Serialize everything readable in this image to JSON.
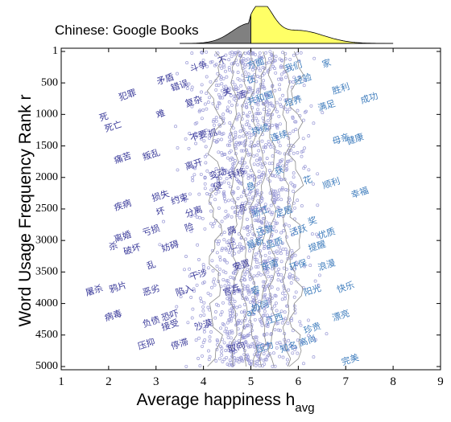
{
  "chart_data": {
    "type": "scatter",
    "title": "Chinese: Google Books",
    "xlabel": "Average happiness h",
    "xlabel_sub": "avg",
    "ylabel": "Word Usage Frequency Rank r",
    "xlim": [
      1,
      9
    ],
    "ylim": [
      5000,
      1
    ],
    "x_ticks": [
      "1",
      "2",
      "3",
      "4",
      "5",
      "6",
      "7",
      "8",
      "9"
    ],
    "y_ticks": [
      "1",
      "500",
      "1000",
      "1500",
      "2000",
      "2500",
      "3000",
      "3500",
      "4000",
      "4500",
      "5000"
    ],
    "grid": false,
    "colors": {
      "points": "#9a9ad6",
      "words_negative": "#3a3a9a",
      "words_positive": "#3f7dbd",
      "histogram_below_mean": "#808080",
      "histogram_above_mean": "#ffff66",
      "contours": "#8a8a8a"
    },
    "mean_h": 5.0,
    "words": [
      {
        "text": "犯罪",
        "h": 2.4,
        "rank": 700
      },
      {
        "text": "死",
        "h": 1.9,
        "rank": 1050
      },
      {
        "text": "死亡",
        "h": 2.1,
        "rank": 1200
      },
      {
        "text": "错误",
        "h": 3.5,
        "rank": 550
      },
      {
        "text": "斗争",
        "h": 3.9,
        "rank": 250
      },
      {
        "text": "不",
        "h": 4.4,
        "rank": 150
      },
      {
        "text": "方面",
        "h": 5.1,
        "rank": 200
      },
      {
        "text": "我们",
        "h": 5.9,
        "rank": 250
      },
      {
        "text": "家",
        "h": 6.6,
        "rank": 200
      },
      {
        "text": "矛盾",
        "h": 3.2,
        "rank": 450
      },
      {
        "text": "复杂",
        "h": 3.8,
        "rank": 800
      },
      {
        "text": "关",
        "h": 4.5,
        "rank": 650
      },
      {
        "text": "活",
        "h": 4.8,
        "rank": 700
      },
      {
        "text": "在",
        "h": 5.0,
        "rank": 450
      },
      {
        "text": "共和国",
        "h": 5.2,
        "rank": 750
      },
      {
        "text": "经验",
        "h": 6.1,
        "rank": 450
      },
      {
        "text": "培养",
        "h": 5.9,
        "rank": 800
      },
      {
        "text": "胜利",
        "h": 6.9,
        "rank": 600
      },
      {
        "text": "满足",
        "h": 6.6,
        "rank": 870
      },
      {
        "text": "成功",
        "h": 7.5,
        "rank": 750
      },
      {
        "text": "难",
        "h": 3.1,
        "rank": 1000
      },
      {
        "text": "不要",
        "h": 3.9,
        "rank": 1350
      },
      {
        "text": "抓",
        "h": 4.2,
        "rank": 1300
      },
      {
        "text": "持续",
        "h": 5.2,
        "rank": 1250
      },
      {
        "text": "连续",
        "h": 5.6,
        "rank": 1350
      },
      {
        "text": "母亲",
        "h": 6.9,
        "rank": 1400
      },
      {
        "text": "健康",
        "h": 7.2,
        "rank": 1400
      },
      {
        "text": "痛苦",
        "h": 2.3,
        "rank": 1700
      },
      {
        "text": "叛乱",
        "h": 2.9,
        "rank": 1650
      },
      {
        "text": "离开",
        "h": 3.8,
        "rank": 1800
      },
      {
        "text": "变动",
        "h": 4.3,
        "rank": 1950
      },
      {
        "text": "转移",
        "h": 4.7,
        "rank": 1950
      },
      {
        "text": "获",
        "h": 5.6,
        "rank": 1900
      },
      {
        "text": "花",
        "h": 6.2,
        "rank": 2050
      },
      {
        "text": "顺利",
        "h": 6.7,
        "rank": 2100
      },
      {
        "text": "幸福",
        "h": 7.3,
        "rank": 2250
      },
      {
        "text": "疾病",
        "h": 2.3,
        "rank": 2450
      },
      {
        "text": "损失",
        "h": 3.1,
        "rank": 2300
      },
      {
        "text": "坏",
        "h": 3.1,
        "rank": 2550
      },
      {
        "text": "约束",
        "h": 3.5,
        "rank": 2350
      },
      {
        "text": "分离",
        "h": 3.8,
        "rank": 2550
      },
      {
        "text": "侵",
        "h": 4.3,
        "rank": 2150
      },
      {
        "text": "息",
        "h": 5.0,
        "rank": 2150
      },
      {
        "text": "流",
        "h": 4.8,
        "rank": 2500
      },
      {
        "text": "浙江",
        "h": 5.2,
        "rank": 2550
      },
      {
        "text": "定居",
        "h": 5.7,
        "rank": 2550
      },
      {
        "text": "奖",
        "h": 6.3,
        "rank": 2700
      },
      {
        "text": "优质",
        "h": 6.6,
        "rank": 2900
      },
      {
        "text": "离婚",
        "h": 2.3,
        "rank": 2950
      },
      {
        "text": "亏损",
        "h": 2.9,
        "rank": 2850
      },
      {
        "text": "险",
        "h": 3.7,
        "rank": 2800
      },
      {
        "text": "还款",
        "h": 5.3,
        "rank": 2850
      },
      {
        "text": "活跃",
        "h": 6.0,
        "rank": 2850
      },
      {
        "text": "杀",
        "h": 2.1,
        "rank": 3100
      },
      {
        "text": "破坏",
        "h": 2.5,
        "rank": 3150
      },
      {
        "text": "妨碍",
        "h": 3.3,
        "rank": 3100
      },
      {
        "text": "腐",
        "h": 4.6,
        "rank": 2850
      },
      {
        "text": "汇",
        "h": 4.6,
        "rank": 3100
      },
      {
        "text": "最新",
        "h": 5.1,
        "rank": 3050
      },
      {
        "text": "品质",
        "h": 5.5,
        "rank": 3050
      },
      {
        "text": "提醒",
        "h": 6.4,
        "rank": 3100
      },
      {
        "text": "乱",
        "h": 2.9,
        "rank": 3400
      },
      {
        "text": "干涉",
        "h": 3.9,
        "rank": 3550
      },
      {
        "text": "安置",
        "h": 4.8,
        "rank": 3400
      },
      {
        "text": "东南",
        "h": 5.4,
        "rank": 3400
      },
      {
        "text": "环保",
        "h": 6.0,
        "rank": 3400
      },
      {
        "text": "浪漫",
        "h": 6.6,
        "rank": 3400
      },
      {
        "text": "屠杀",
        "h": 1.7,
        "rank": 3800
      },
      {
        "text": "鸦片",
        "h": 2.2,
        "rank": 3750
      },
      {
        "text": "恶劣",
        "h": 2.9,
        "rank": 3800
      },
      {
        "text": "陷入",
        "h": 3.6,
        "rank": 3800
      },
      {
        "text": "官兵",
        "h": 4.6,
        "rank": 3800
      },
      {
        "text": "容",
        "h": 5.1,
        "rank": 3800
      },
      {
        "text": "阳光",
        "h": 6.3,
        "rank": 3800
      },
      {
        "text": "快乐",
        "h": 7.0,
        "rank": 3750
      },
      {
        "text": "病毒",
        "h": 2.1,
        "rank": 4200
      },
      {
        "text": "负债",
        "h": 2.9,
        "rank": 4300
      },
      {
        "text": "恐吓",
        "h": 3.3,
        "rank": 4200
      },
      {
        "text": "接受",
        "h": 3.3,
        "rank": 4350
      },
      {
        "text": "沙漠",
        "h": 4.0,
        "rank": 4350
      },
      {
        "text": "at",
        "h": 5.0,
        "rank": 4150
      },
      {
        "text": "协同",
        "h": 5.2,
        "rank": 4050
      },
      {
        "text": "江西",
        "h": 5.5,
        "rank": 4250
      },
      {
        "text": "珍贵",
        "h": 6.3,
        "rank": 4400
      },
      {
        "text": "漂亮",
        "h": 6.9,
        "rank": 4200
      },
      {
        "text": "压抑",
        "h": 2.8,
        "rank": 4650
      },
      {
        "text": "停滞",
        "h": 3.5,
        "rank": 4650
      },
      {
        "text": "取向",
        "h": 4.7,
        "rank": 4700
      },
      {
        "text": "压力",
        "h": 5.3,
        "rank": 4700
      },
      {
        "text": "知名",
        "h": 5.8,
        "rank": 4700
      },
      {
        "text": "高尚",
        "h": 6.2,
        "rank": 4600
      },
      {
        "text": "完美",
        "h": 7.1,
        "rank": 4900
      }
    ]
  }
}
